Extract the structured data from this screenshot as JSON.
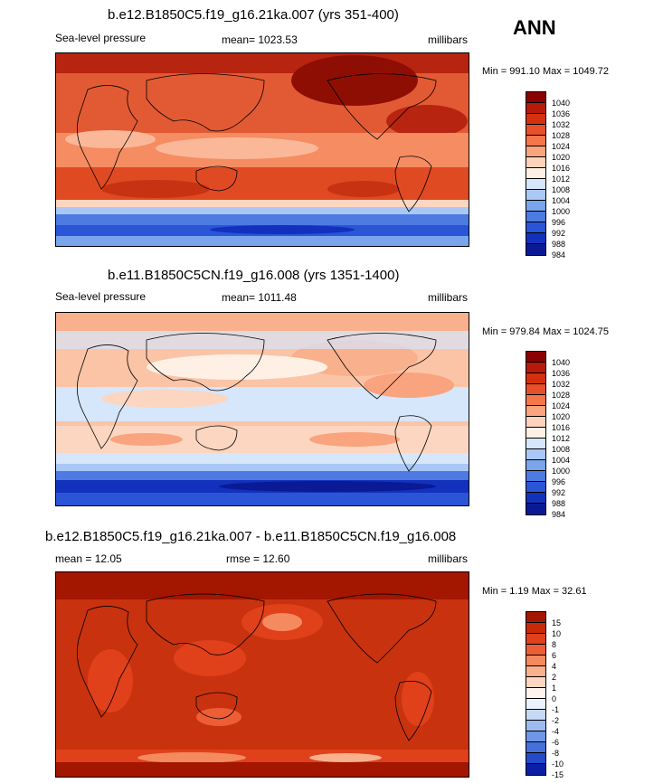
{
  "season": "ANN",
  "panels": [
    {
      "title": "b.e12.B1850C5.f19_g16.21ka.007 (yrs 351-400)",
      "left_label": "Sea-level pressure",
      "center_label": "mean= 1023.53",
      "units": "millibars",
      "stats": "Min = 991.10 Max = 1049.72"
    },
    {
      "title": "b.e11.B1850C5CN.f19_g16.008 (yrs 1351-1400)",
      "left_label": "Sea-level pressure",
      "center_label": "mean= 1011.48",
      "units": "millibars",
      "stats": "Min = 979.84 Max = 1024.75"
    },
    {
      "title": "b.e12.B1850C5.f19_g16.21ka.007 - b.e11.B1850C5CN.f19_g16.008",
      "left_label": "mean =  12.05",
      "center_label": "rmse =  12.60",
      "units": "millibars",
      "stats": "Min =   1.19 Max =  32.61"
    }
  ],
  "chart_data": [
    {
      "type": "heatmap",
      "title": "b.e12.B1850C5.f19_g16.21ka.007 (yrs 351-400)",
      "variable": "Sea-level pressure",
      "units": "millibars",
      "mean": 1023.53,
      "min": 991.1,
      "max": 1049.72,
      "levels": [
        "1040",
        "1036",
        "1032",
        "1028",
        "1024",
        "1020",
        "1016",
        "1012",
        "1008",
        "1004",
        "1000",
        "996",
        "992",
        "988",
        "984"
      ],
      "colors": [
        "#8b0000",
        "#b71a0a",
        "#d4300f",
        "#e8502a",
        "#f4764a",
        "#f9a47e",
        "#fdd3bd",
        "#fff0e6",
        "#d6e6fb",
        "#aac8f5",
        "#7aa4ec",
        "#4d7be2",
        "#2a55d6",
        "#1231bd",
        "#0a1a94"
      ]
    },
    {
      "type": "heatmap",
      "title": "b.e11.B1850C5CN.f19_g16.008 (yrs 1351-1400)",
      "variable": "Sea-level pressure",
      "units": "millibars",
      "mean": 1011.48,
      "min": 979.84,
      "max": 1024.75,
      "levels": [
        "1040",
        "1036",
        "1032",
        "1028",
        "1024",
        "1020",
        "1016",
        "1012",
        "1008",
        "1004",
        "1000",
        "996",
        "992",
        "988",
        "984"
      ],
      "colors": [
        "#8b0000",
        "#b71a0a",
        "#d4300f",
        "#e8502a",
        "#f4764a",
        "#f9a47e",
        "#fdd3bd",
        "#fff0e6",
        "#d6e6fb",
        "#aac8f5",
        "#7aa4ec",
        "#4d7be2",
        "#2a55d6",
        "#1231bd",
        "#0a1a94"
      ]
    },
    {
      "type": "heatmap",
      "title": "b.e12.B1850C5.f19_g16.21ka.007 - b.e11.B1850C5CN.f19_g16.008",
      "units": "millibars",
      "mean": 12.05,
      "rmse": 12.6,
      "min": 1.19,
      "max": 32.61,
      "levels": [
        "15",
        "10",
        "8",
        "6",
        "4",
        "2",
        "1",
        "0",
        "-1",
        "-2",
        "-4",
        "-6",
        "-8",
        "-10",
        "-15"
      ],
      "colors": [
        "#a31600",
        "#c82a08",
        "#e0401a",
        "#ee5e36",
        "#f58a5f",
        "#f9b08d",
        "#fcd6c0",
        "#fff4ee",
        "#ecf2fd",
        "#c6d9f7",
        "#9cbcf0",
        "#6f97e6",
        "#4470da",
        "#234bc9",
        "#0a1fa6"
      ]
    }
  ]
}
